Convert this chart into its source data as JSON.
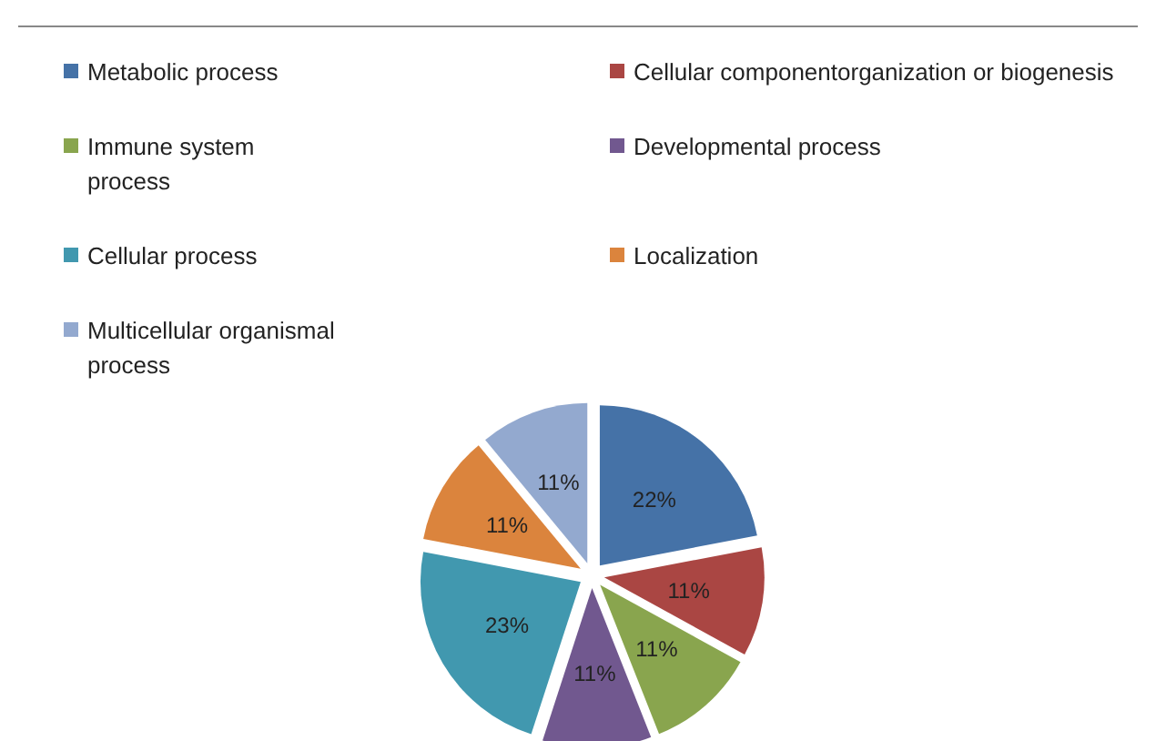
{
  "chart_data": {
    "type": "pie",
    "categories": [
      "Metabolic process",
      "Cellular componentorganization or biogenesis",
      "Immune system process",
      "Developmental process",
      "Cellular process",
      "Localization",
      "Multicellular organismal process"
    ],
    "values": [
      22,
      11,
      11,
      11,
      23,
      11,
      11
    ],
    "value_labels": [
      "22%",
      "11%",
      "11%",
      "11%",
      "23%",
      "11%",
      "11%"
    ],
    "colors": [
      "#4572a7",
      "#aa4643",
      "#89a54e",
      "#71588f",
      "#4198af",
      "#db843d",
      "#93a9cf"
    ],
    "legend": "top"
  }
}
